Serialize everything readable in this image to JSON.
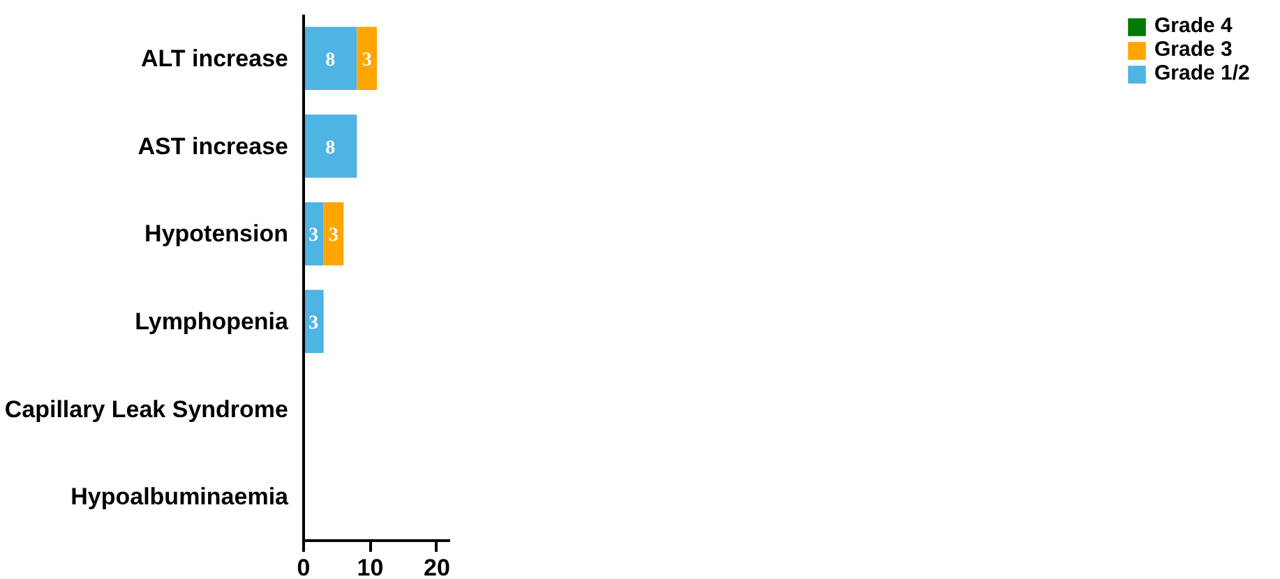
{
  "chart_data": {
    "type": "bar",
    "orientation": "horizontal",
    "stacked": true,
    "categories": [
      "ALT increase",
      "AST increase",
      "Hypotension",
      "Lymphopenia",
      "Capillary Leak Syndrome",
      "Hypoalbuminaemia"
    ],
    "series": [
      {
        "name": "Grade 1/2",
        "color": "#4fb3e3",
        "values": [
          8,
          8,
          3,
          3,
          0,
          0
        ],
        "value_labels": [
          "8",
          "8",
          "3",
          "3",
          null,
          null
        ]
      },
      {
        "name": "Grade 3",
        "color": "#ffa500",
        "values": [
          3,
          0,
          3,
          0,
          0,
          0
        ],
        "value_labels": [
          "3",
          null,
          "3",
          null,
          null,
          null
        ]
      },
      {
        "name": "Grade 4",
        "color": "#007a00",
        "values": [
          0,
          0,
          0,
          0,
          0,
          0
        ],
        "value_labels": [
          null,
          null,
          null,
          null,
          null,
          null
        ]
      }
    ],
    "xlim": [
      0,
      22
    ],
    "xticks": [
      0,
      10,
      20
    ],
    "legend": "top right",
    "grid": false
  }
}
